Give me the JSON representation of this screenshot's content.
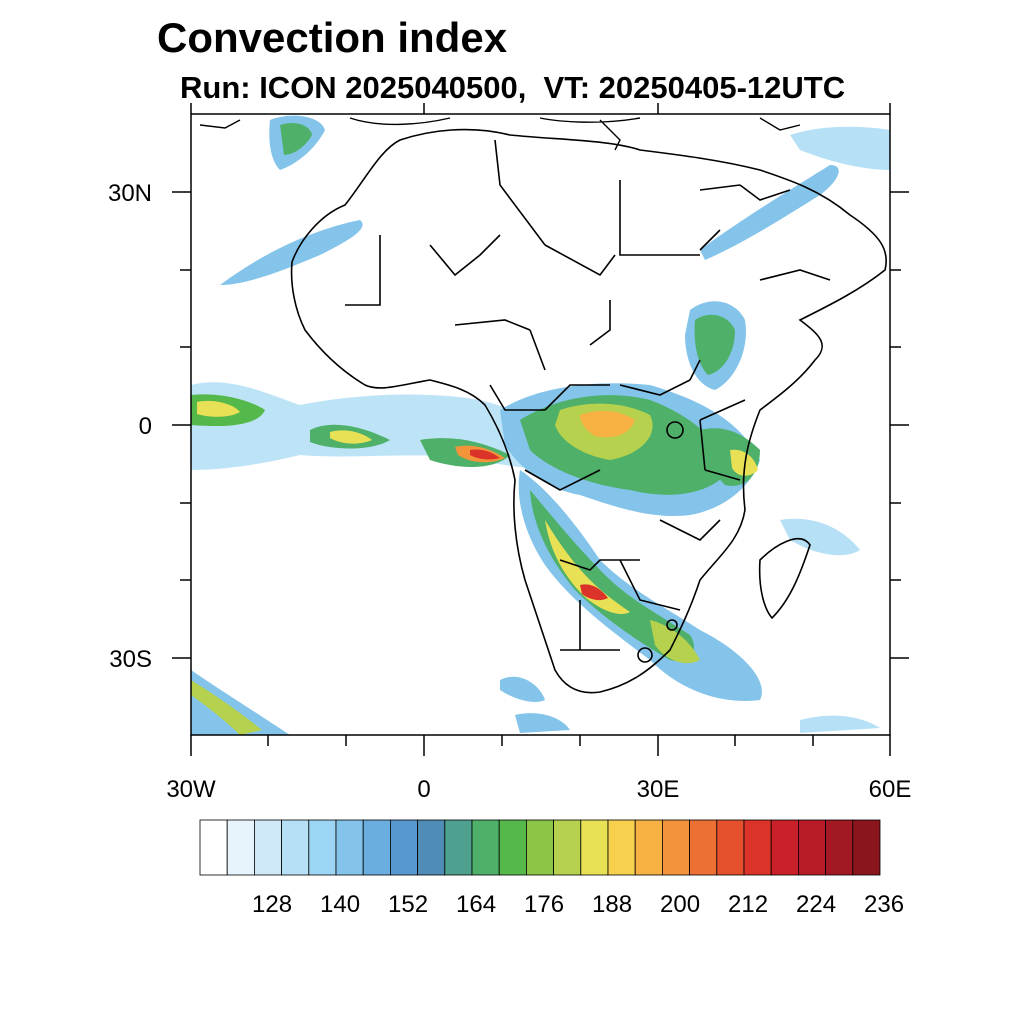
{
  "title": "Convection index",
  "subtitle": "Run: ICON 2025040500,  VT: 20250405-12UTC",
  "map": {
    "projection": "cylindrical-equidistant",
    "lon_range": [
      -30,
      60
    ],
    "lat_range": [
      -40,
      40
    ],
    "lat_tick_labels": [
      {
        "lat": 30,
        "label": "30N"
      },
      {
        "lat": 0,
        "label": "0"
      },
      {
        "lat": -30,
        "label": "30S"
      }
    ],
    "lon_tick_labels": [
      {
        "lon": -30,
        "label": "30W"
      },
      {
        "lon": 0,
        "label": "0"
      },
      {
        "lon": 30,
        "label": "30E"
      },
      {
        "lon": 60,
        "label": "60E"
      }
    ],
    "region": "Africa",
    "field": "Convection index"
  },
  "colorbar": {
    "colors": [
      "#ffffff",
      "#e8f4fc",
      "#cfe9f8",
      "#b6e0f6",
      "#9dd6f4",
      "#84c4ea",
      "#6aaedf",
      "#5698cf",
      "#4f8cb6",
      "#4ea08f",
      "#4eb069",
      "#55b84a",
      "#8cc447",
      "#b6d14d",
      "#e9e155",
      "#f7d04d",
      "#f6b142",
      "#f3943a",
      "#ec6f33",
      "#e4512c",
      "#db3229",
      "#c9202a",
      "#b71b27",
      "#a21923",
      "#8b151d"
    ],
    "labels": [
      "128",
      "140",
      "152",
      "164",
      "176",
      "188",
      "200",
      "212",
      "224",
      "236"
    ]
  }
}
